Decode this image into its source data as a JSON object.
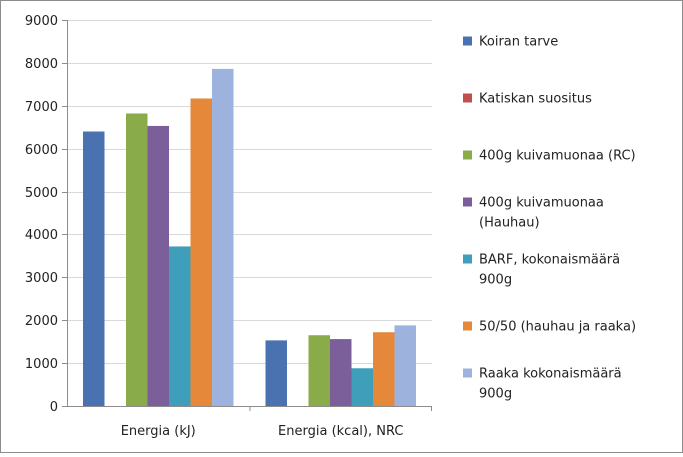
{
  "chart_data": {
    "type": "bar",
    "categories": [
      "Energia (kJ)",
      "Energia (kcal), NRC"
    ],
    "series": [
      {
        "name": "Koiran tarve",
        "color": "#4a72b0",
        "values": [
          6400,
          1530
        ]
      },
      {
        "name": "Katiskan suositus",
        "color": "#c0504d",
        "values": [
          0,
          0
        ]
      },
      {
        "name": "400g kuivamuonaa (RC)",
        "color": "#8aab4a",
        "values": [
          6820,
          1650
        ]
      },
      {
        "name": "400g kuivamuonaa (Hauhau)",
        "color": "#7a5f9a",
        "values": [
          6530,
          1560
        ]
      },
      {
        "name": "BARF, kokonaismäärä 900g",
        "color": "#3f9fba",
        "values": [
          3720,
          880
        ]
      },
      {
        "name": "50/50 (hauhau ja raaka)",
        "color": "#e6883a",
        "values": [
          7170,
          1720
        ]
      },
      {
        "name": "Raaka kokonaismäärä 900g",
        "color": "#9db3dd",
        "values": [
          7860,
          1880
        ]
      }
    ],
    "ylim": [
      0,
      9000
    ],
    "yticks": [
      "0",
      "1000",
      "2000",
      "3000",
      "4000",
      "5000",
      "6000",
      "7000",
      "8000",
      "9000"
    ],
    "grid": true,
    "legend": "right"
  },
  "legend_lines": [
    [
      "Koiran tarve"
    ],
    [
      "Katiskan suositus"
    ],
    [
      "400g kuivamuonaa (RC)"
    ],
    [
      "400g kuivamuonaa",
      "(Hauhau)"
    ],
    [
      "BARF, kokonaismäärä",
      "900g"
    ],
    [
      "50/50 (hauhau ja raaka)"
    ],
    [
      "Raaka kokonaismäärä",
      "900g"
    ]
  ]
}
